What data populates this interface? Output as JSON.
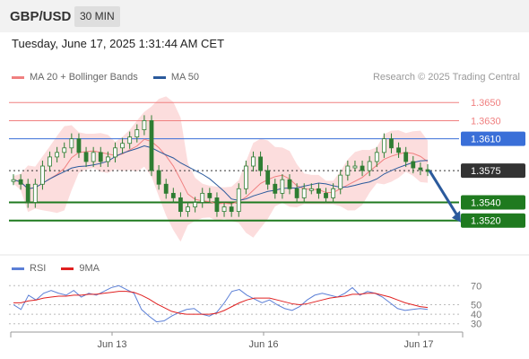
{
  "header": {
    "symbol": "GBP/USD",
    "timeframe": "30 MIN",
    "datetime": "Tuesday, June 17, 2025 1:31:44 AM CET",
    "copyright": "Research © 2025 Trading Central"
  },
  "price_legend": [
    {
      "label": "MA 20 + Bollinger Bands",
      "color": "#f08080"
    },
    {
      "label": "MA 50",
      "color": "#2b5a9c"
    }
  ],
  "rsi_legend": [
    {
      "label": "RSI",
      "color": "#5b7fd6"
    },
    {
      "label": "9MA",
      "color": "#e02020"
    }
  ],
  "colors": {
    "resistance": "#f08080",
    "pivot": "#3a6fd8",
    "support": "#1f7a1f",
    "current": "#333333",
    "candle": "#2e7d32",
    "arrow": "#2b5a9c",
    "band_fill": "#fbd5d5"
  },
  "chart_data": [
    {
      "type": "line",
      "title": "",
      "ylim": [
        1.3496,
        1.3668
      ],
      "x_ticks": [
        "Jun 13",
        "Jun 16",
        "Jun 17"
      ],
      "price_levels": [
        {
          "value": 1.365,
          "label": "1.3650",
          "kind": "resistance"
        },
        {
          "value": 1.363,
          "label": "1.3630",
          "kind": "resistance"
        },
        {
          "value": 1.361,
          "label": "1.3610",
          "kind": "pivot"
        },
        {
          "value": 1.3575,
          "label": "1.3575",
          "kind": "current"
        },
        {
          "value": 1.354,
          "label": "1.3540",
          "kind": "support"
        },
        {
          "value": 1.352,
          "label": "1.3520",
          "kind": "support"
        }
      ],
      "forecast": {
        "from": 1.3575,
        "to": 1.352,
        "direction": "down"
      },
      "series": [
        {
          "name": "GBP/USD",
          "values": [
            1.3565,
            1.356,
            1.354,
            1.356,
            1.358,
            1.359,
            1.3595,
            1.36,
            1.361,
            1.3595,
            1.3585,
            1.3595,
            1.3585,
            1.359,
            1.36,
            1.3605,
            1.3612,
            1.362,
            1.363,
            1.3575,
            1.356,
            1.355,
            1.3545,
            1.353,
            1.3535,
            1.354,
            1.355,
            1.3545,
            1.353,
            1.3535,
            1.353,
            1.3555,
            1.358,
            1.359,
            1.3575,
            1.356,
            1.355,
            1.3565,
            1.3555,
            1.3545,
            1.3555,
            1.3555,
            1.355,
            1.3545,
            1.3555,
            1.357,
            1.358,
            1.358,
            1.3575,
            1.3585,
            1.3595,
            1.361,
            1.36,
            1.3595,
            1.3585,
            1.3578,
            1.3576,
            1.3575
          ]
        }
      ]
    },
    {
      "type": "line",
      "title": "",
      "ylim": [
        25,
        75
      ],
      "y_ticks": [
        70,
        50,
        40,
        30
      ],
      "series": [
        {
          "name": "RSI",
          "values": [
            50,
            45,
            60,
            55,
            62,
            65,
            62,
            60,
            65,
            58,
            62,
            60,
            64,
            68,
            70,
            66,
            62,
            45,
            38,
            32,
            33,
            38,
            42,
            45,
            46,
            40,
            38,
            42,
            52,
            64,
            66,
            60,
            56,
            52,
            55,
            50,
            46,
            44,
            48,
            55,
            60,
            62,
            60,
            58,
            62,
            68,
            60,
            64,
            62,
            58,
            52,
            46,
            44,
            45,
            46,
            45
          ]
        },
        {
          "name": "9MA",
          "values": [
            52,
            52,
            54,
            55,
            57,
            58,
            59,
            59,
            60,
            60,
            61,
            61,
            62,
            63,
            64,
            64,
            63,
            60,
            56,
            51,
            47,
            43,
            41,
            40,
            40,
            40,
            40,
            41,
            44,
            48,
            52,
            55,
            57,
            57,
            57,
            55,
            53,
            51,
            50,
            51,
            53,
            55,
            57,
            58,
            59,
            61,
            61,
            62,
            62,
            60,
            58,
            55,
            52,
            50,
            48,
            47
          ]
        }
      ]
    }
  ]
}
